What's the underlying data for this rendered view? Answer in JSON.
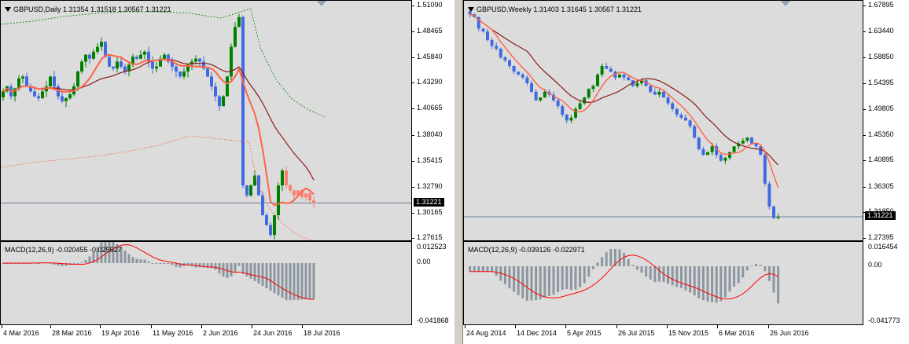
{
  "left_chart": {
    "symbol_header": "GBPUSD,Daily",
    "ohlc": "1.31354 1.31518 1.30567 1.31221",
    "price_axis": [
      "1.51090",
      "1.48465",
      "1.45840",
      "1.43290",
      "1.40665",
      "1.38040",
      "1.35415",
      "1.32790",
      "1.30165",
      "1.27615"
    ],
    "price_axis_values": [
      1.5109,
      1.48465,
      1.4584,
      1.4329,
      1.40665,
      1.3804,
      1.35415,
      1.3279,
      1.30165,
      1.27615
    ],
    "current_price": "1.31221",
    "current_price_value": 1.31221,
    "macd_header": "MACD(12,26,9) -0.020455 -0.025527",
    "macd_axis": [
      "0.012523",
      "0.00",
      "-0.041868"
    ],
    "time_axis": [
      "4 Mar 2016",
      "28 Mar 2016",
      "19 Apr 2016",
      "11 May 2016",
      "2 Jun 2016",
      "24 Jun 2016",
      "18 Jul 2016"
    ]
  },
  "right_chart": {
    "symbol_header": "GBPUSD,Weekly",
    "ohlc": "1.31403 1.31645 1.30567 1.31221",
    "price_axis": [
      "1.67895",
      "1.63440",
      "1.58850",
      "1.54395",
      "1.49805",
      "1.45350",
      "1.40895",
      "1.36305",
      "1.31850",
      "1.27395"
    ],
    "price_axis_values": [
      1.67895,
      1.6344,
      1.5885,
      1.54395,
      1.49805,
      1.4535,
      1.40895,
      1.36305,
      1.3185,
      1.27395
    ],
    "current_price": "1.31221",
    "current_price_value": 1.31221,
    "macd_header": "MACD(12,26,9) -0.039126 -0.022971",
    "macd_axis": [
      "0.016454",
      "0.00",
      "-0.041773"
    ],
    "time_axis": [
      "24 Aug 2014",
      "14 Dec 2014",
      "5 Apr 2015",
      "26 Jul 2015",
      "15 Nov 2015",
      "6 Mar 2016",
      "26 Jun 2016"
    ]
  },
  "colors": {
    "bull": "#008000",
    "bear": "#4169e1",
    "recent": "#fa8072",
    "ma_fast": "#ff6347",
    "ma_slow": "#8b1a1a",
    "envelope": "#008000",
    "envelope_low": "#ff6347",
    "macd_hist": "#8c96a0",
    "macd_signal": "#ff0000"
  }
}
